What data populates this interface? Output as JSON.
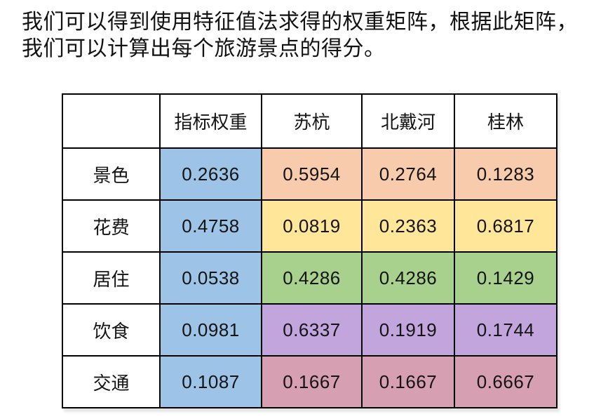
{
  "intro": {
    "line1": "我们可以得到使用特征值法求得的权重矩阵，根据此矩阵，",
    "line2": "我们可以计算出每个旅游景点的得分。"
  },
  "colors": {
    "weight_column": "#9dc3e6",
    "row_scenery": "#f8cbad",
    "row_cost": "#ffe699",
    "row_lodging": "#a9d18e",
    "row_food": "#c1a5dc",
    "row_transport": "#d79fb2",
    "table_border": "#000000"
  },
  "chart_data": {
    "type": "table",
    "columns": [
      "",
      "指标权重",
      "苏杭",
      "北戴河",
      "桂林"
    ],
    "rows": [
      {
        "label": "景色",
        "values": [
          "0.2636",
          "0.5954",
          "0.2764",
          "0.1283"
        ]
      },
      {
        "label": "花费",
        "values": [
          "0.4758",
          "0.0819",
          "0.2363",
          "0.6817"
        ]
      },
      {
        "label": "居住",
        "values": [
          "0.0538",
          "0.4286",
          "0.4286",
          "0.1429"
        ]
      },
      {
        "label": "饮食",
        "values": [
          "0.0981",
          "0.6337",
          "0.1919",
          "0.1744"
        ]
      },
      {
        "label": "交通",
        "values": [
          "0.1087",
          "0.1667",
          "0.1667",
          "0.6667"
        ]
      }
    ]
  }
}
